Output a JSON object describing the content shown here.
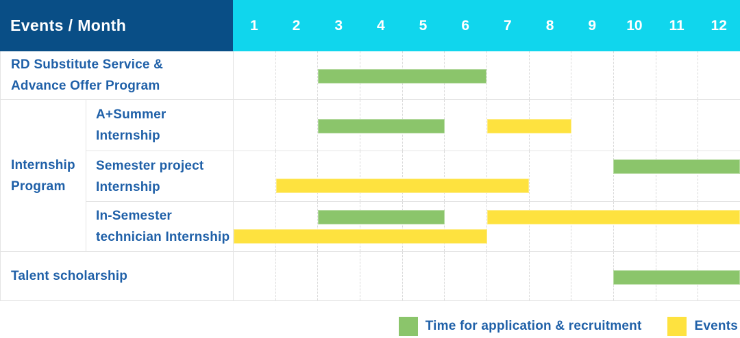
{
  "header": {
    "title": "Events / Month",
    "months": [
      "1",
      "2",
      "3",
      "4",
      "5",
      "6",
      "7",
      "8",
      "9",
      "10",
      "11",
      "12"
    ]
  },
  "colors": {
    "navy": "#094e86",
    "cyan": "#10d6ed",
    "green": "#8bc56b",
    "yellow": "#fee23f",
    "grid": "#e4e4e4",
    "dash": "#d9d9d9",
    "label": "#1f60a8"
  },
  "legend": {
    "items": [
      {
        "label": "Time for application & recruitment",
        "color": "green"
      },
      {
        "label": "Events",
        "color": "yellow"
      }
    ]
  },
  "chart_data": {
    "type": "table",
    "chart_kind": "gantt-schedule",
    "title": "Events / Month",
    "x_unit": "month",
    "x_range": [
      1,
      12
    ],
    "columns": [
      "1",
      "2",
      "3",
      "4",
      "5",
      "6",
      "7",
      "8",
      "9",
      "10",
      "11",
      "12"
    ],
    "grid": "dashed-vertical",
    "legend_position": "bottom-right",
    "legend": [
      {
        "color": "green",
        "label": "Time for application & recruitment"
      },
      {
        "color": "yellow",
        "label": "Events"
      }
    ],
    "rows": [
      {
        "group": "",
        "label": "RD Substitute Service &\nAdvance Offer Program",
        "lanes": [
          [
            {
              "color": "green",
              "start": 3,
              "end": 6
            }
          ]
        ]
      },
      {
        "group": "Internship Program",
        "label": "A+Summer\nInternship",
        "lanes": [
          [
            {
              "color": "green",
              "start": 3,
              "end": 5
            },
            {
              "color": "yellow",
              "start": 7,
              "end": 8
            }
          ]
        ]
      },
      {
        "group": "Internship Program",
        "label": "Semester project\nInternship",
        "lanes": [
          [
            {
              "color": "green",
              "start": 10,
              "end": 12
            }
          ],
          [
            {
              "color": "yellow",
              "start": 2,
              "end": 7
            }
          ]
        ]
      },
      {
        "group": "Internship Program",
        "label": "In-Semester\ntechnician Internship",
        "lanes": [
          [
            {
              "color": "green",
              "start": 3,
              "end": 5
            },
            {
              "color": "yellow",
              "start": 7,
              "end": 12
            }
          ],
          [
            {
              "color": "yellow",
              "start": 1,
              "end": 6
            }
          ]
        ]
      },
      {
        "group": "",
        "label": "Talent scholarship",
        "lanes": [
          [
            {
              "color": "green",
              "start": 10,
              "end": 12
            }
          ]
        ]
      }
    ]
  }
}
